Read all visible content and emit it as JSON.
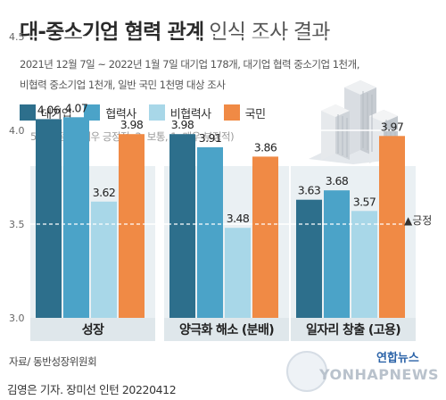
{
  "header": {
    "title_main": "대-중소기업 협력 관계",
    "title_sub": "인식 조사 결과",
    "survey_info": [
      "2021년 12월 7일 ~ 2022년 1월 7일 대기업 178개, 대기업 협력 중소기업 1천개,",
      "비협력 중소기업 1천개, 일반 국민 1천명 대상 조사"
    ]
  },
  "legend": [
    {
      "label": "대기업",
      "color": "#2d6f8c"
    },
    {
      "label": "협력사",
      "color": "#4ba3c8"
    },
    {
      "label": "비협력사",
      "color": "#a8d7e8"
    },
    {
      "label": "국민",
      "color": "#f08a45"
    }
  ],
  "scale_note": "5점 만점(5: 매우 긍정적, 3: 보통, 1: 매우 부정적)",
  "chart_data": {
    "type": "bar",
    "categories": [
      "성장",
      "양극화 해소 (분배)",
      "일자리 창출 (고용)"
    ],
    "series": [
      {
        "name": "대기업",
        "values": [
          4.06,
          3.98,
          3.63
        ]
      },
      {
        "name": "협력사",
        "values": [
          4.07,
          3.91,
          3.68
        ]
      },
      {
        "name": "비협력사",
        "values": [
          3.62,
          3.48,
          3.57
        ]
      },
      {
        "name": "국민",
        "values": [
          3.98,
          3.86,
          3.97
        ]
      }
    ],
    "value_labels": [
      [
        "4.06",
        "4.07",
        "3.62",
        "3.98"
      ],
      [
        "3.98",
        "3.91",
        "3.48",
        "3.86"
      ],
      [
        "3.63",
        "3.68",
        "3.57",
        "3.97"
      ]
    ],
    "yticks": [
      "3.0",
      "3.5",
      "4.0",
      "4.5"
    ],
    "ylim": [
      3.0,
      4.5
    ],
    "reference_line": {
      "value": 3.5,
      "label": "▲긍정"
    },
    "grid": true
  },
  "footer": {
    "source": "자료/ 동반성장위원회",
    "byline": "김영은 기자. 장미선 인턴  20220412",
    "logo_brand": "연합뉴스",
    "logo_text": "YONHAPNEWS"
  }
}
